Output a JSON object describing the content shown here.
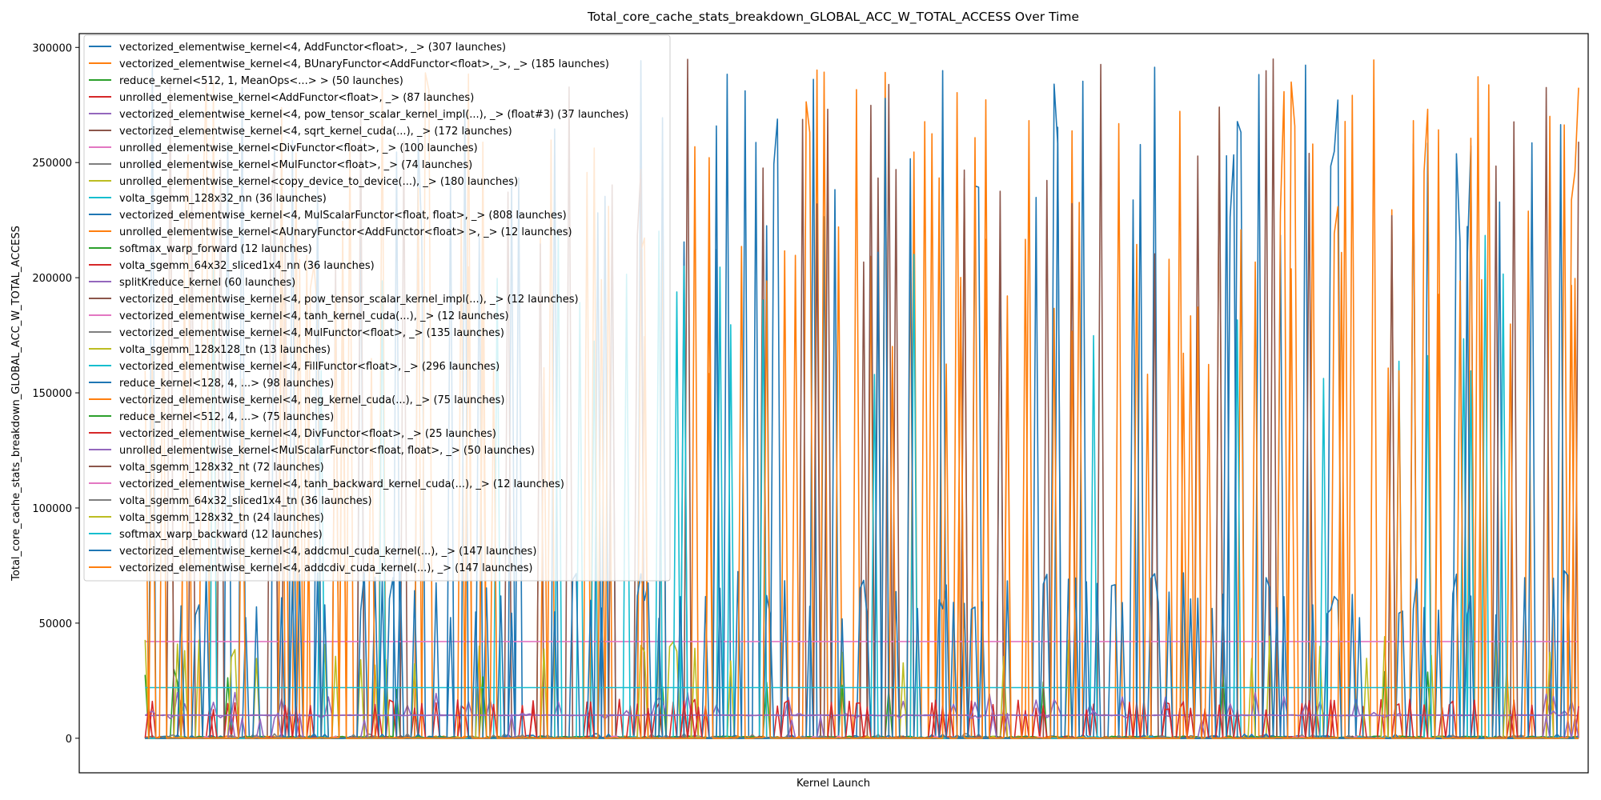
{
  "chart_data": {
    "type": "line",
    "title": "Total_core_cache_stats_breakdown_GLOBAL_ACC_W_TOTAL_ACCESS Over Time",
    "xlabel": "Kernel Launch",
    "ylabel": "Total_core_cache_stats_breakdown_GLOBAL_ACC_W_TOTAL_ACCESS",
    "ylim": [
      -15000,
      306000
    ],
    "xlim": [
      -110,
      2410
    ],
    "x_tick_labels": [],
    "y_ticks": [
      0,
      50000,
      100000,
      150000,
      200000,
      250000,
      300000
    ],
    "y_tick_labels": [
      "0",
      "50000",
      "100000",
      "150000",
      "200000",
      "250000",
      "300000"
    ],
    "grid": false,
    "legend_position": "top-left",
    "series": [
      {
        "name": "vectorized_elementwise_kernel<4, AddFunctor<float>, _> (307 launches)",
        "color": "#1f77b4",
        "values": []
      },
      {
        "name": "vectorized_elementwise_kernel<4, BUnaryFunctor<AddFunctor<float>,_>, _> (185 launches)",
        "color": "#ff7f0e",
        "values": []
      },
      {
        "name": "reduce_kernel<512, 1, MeanOps<...> > (50 launches)",
        "color": "#2ca02c",
        "values": []
      },
      {
        "name": "unrolled_elementwise_kernel<AddFunctor<float>, _> (87 launches)",
        "color": "#d62728",
        "values": []
      },
      {
        "name": "vectorized_elementwise_kernel<4, pow_tensor_scalar_kernel_impl(...), _> (float#3) (37 launches)",
        "color": "#9467bd",
        "values": []
      },
      {
        "name": "vectorized_elementwise_kernel<4, sqrt_kernel_cuda(...), _> (172 launches)",
        "color": "#8c564b",
        "values": []
      },
      {
        "name": "unrolled_elementwise_kernel<DivFunctor<float>, _> (100 launches)",
        "color": "#e377c2",
        "values": []
      },
      {
        "name": "unrolled_elementwise_kernel<MulFunctor<float>, _> (74 launches)",
        "color": "#7f7f7f",
        "values": []
      },
      {
        "name": "unrolled_elementwise_kernel<copy_device_to_device(...), _> (180 launches)",
        "color": "#bcbd22",
        "values": []
      },
      {
        "name": "volta_sgemm_128x32_nn (36 launches)",
        "color": "#17becf",
        "values": []
      },
      {
        "name": "vectorized_elementwise_kernel<4, MulScalarFunctor<float, float>, _> (808 launches)",
        "color": "#1f77b4",
        "values": []
      },
      {
        "name": "unrolled_elementwise_kernel<AUnaryFunctor<AddFunctor<float> >, _> (12 launches)",
        "color": "#ff7f0e",
        "values": []
      },
      {
        "name": "softmax_warp_forward (12 launches)",
        "color": "#2ca02c",
        "values": []
      },
      {
        "name": "volta_sgemm_64x32_sliced1x4_nn (36 launches)",
        "color": "#d62728",
        "values": []
      },
      {
        "name": "splitKreduce_kernel (60 launches)",
        "color": "#9467bd",
        "values": []
      },
      {
        "name": "vectorized_elementwise_kernel<4, pow_tensor_scalar_kernel_impl(...), _> (12 launches)",
        "color": "#8c564b",
        "values": []
      },
      {
        "name": "vectorized_elementwise_kernel<4, tanh_kernel_cuda(...), _> (12 launches)",
        "color": "#e377c2",
        "values": []
      },
      {
        "name": "vectorized_elementwise_kernel<4, MulFunctor<float>, _> (135 launches)",
        "color": "#7f7f7f",
        "values": []
      },
      {
        "name": "volta_sgemm_128x128_tn (13 launches)",
        "color": "#bcbd22",
        "values": []
      },
      {
        "name": "vectorized_elementwise_kernel<4, FillFunctor<float>, _> (296 launches)",
        "color": "#17becf",
        "values": []
      },
      {
        "name": "reduce_kernel<128, 4, ...> (98 launches)",
        "color": "#1f77b4",
        "values": []
      },
      {
        "name": "vectorized_elementwise_kernel<4, neg_kernel_cuda(...), _> (75 launches)",
        "color": "#ff7f0e",
        "values": []
      },
      {
        "name": "reduce_kernel<512, 4, ...> (75 launches)",
        "color": "#2ca02c",
        "values": []
      },
      {
        "name": "vectorized_elementwise_kernel<4, DivFunctor<float>, _> (25 launches)",
        "color": "#d62728",
        "values": []
      },
      {
        "name": "unrolled_elementwise_kernel<MulScalarFunctor<float, float>, _> (50 launches)",
        "color": "#9467bd",
        "values": []
      },
      {
        "name": "volta_sgemm_128x32_nt (72 launches)",
        "color": "#8c564b",
        "values": []
      },
      {
        "name": "vectorized_elementwise_kernel<4, tanh_backward_kernel_cuda(...), _> (12 launches)",
        "color": "#e377c2",
        "values": []
      },
      {
        "name": "volta_sgemm_64x32_sliced1x4_tn (36 launches)",
        "color": "#7f7f7f",
        "values": []
      },
      {
        "name": "volta_sgemm_128x32_tn (24 launches)",
        "color": "#bcbd22",
        "values": []
      },
      {
        "name": "softmax_warp_backward (12 launches)",
        "color": "#17becf",
        "values": []
      },
      {
        "name": "vectorized_elementwise_kernel<4, addcmul_cuda_kernel(...), _> (147 launches)",
        "color": "#1f77b4",
        "values": []
      },
      {
        "name": "vectorized_elementwise_kernel<4, addcdiv_cuda_kernel(...), _> (147 launches)",
        "color": "#ff7f0e",
        "values": []
      }
    ]
  }
}
